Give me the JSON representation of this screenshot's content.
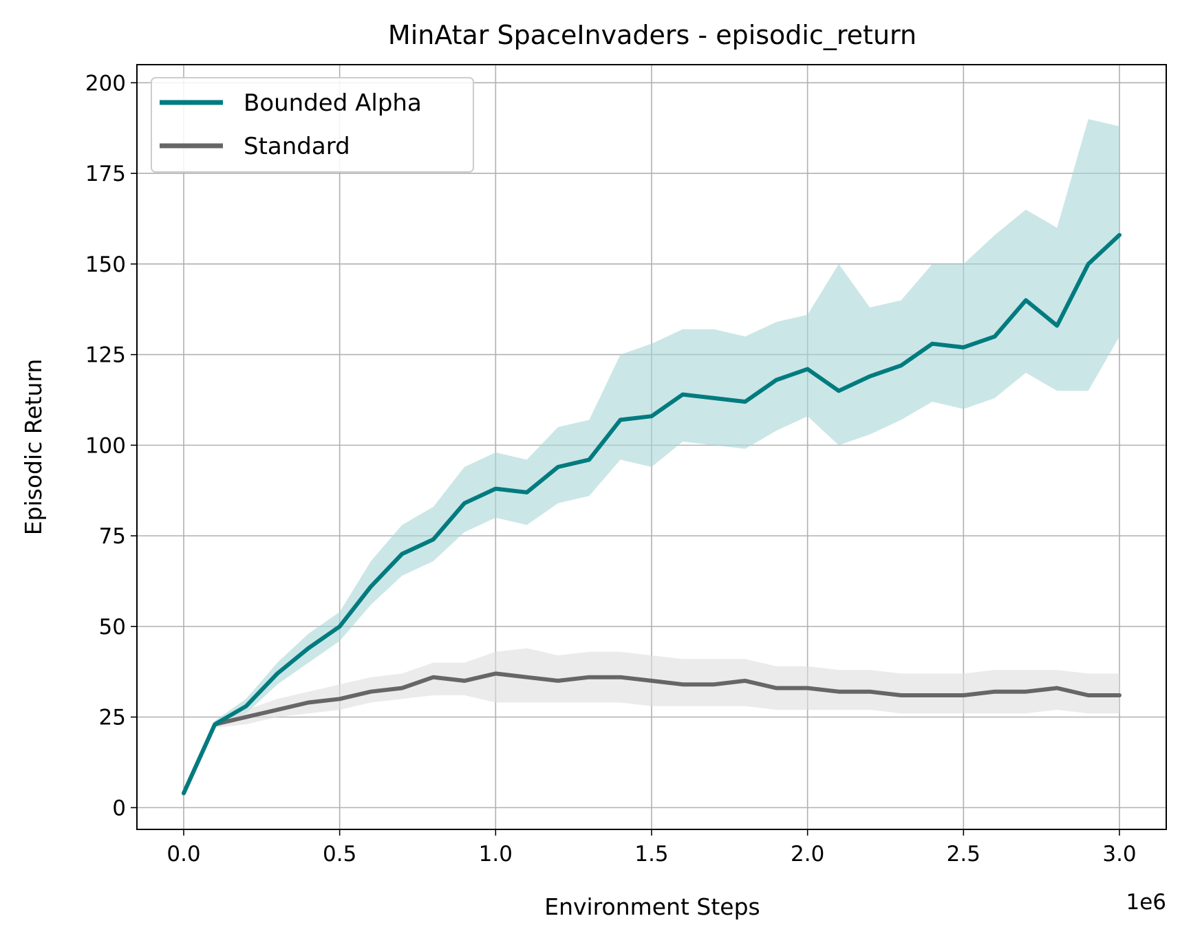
{
  "chart_data": {
    "type": "line",
    "title": "MinAtar SpaceInvaders - episodic_return",
    "xlabel": "Environment Steps",
    "ylabel": "Episodic Return",
    "x_offset_text": "1e6",
    "xlim": [
      -0.15,
      3.15
    ],
    "ylim": [
      -6,
      205
    ],
    "xticks": [
      0.0,
      0.5,
      1.0,
      1.5,
      2.0,
      2.5,
      3.0
    ],
    "xtick_labels": [
      "0.0",
      "0.5",
      "1.0",
      "1.5",
      "2.0",
      "2.5",
      "3.0"
    ],
    "yticks": [
      0,
      25,
      50,
      75,
      100,
      125,
      150,
      175,
      200
    ],
    "ytick_labels": [
      "0",
      "25",
      "50",
      "75",
      "100",
      "125",
      "150",
      "175",
      "200"
    ],
    "grid": true,
    "legend_position": "top-left",
    "x": [
      0.0,
      0.1,
      0.2,
      0.3,
      0.4,
      0.5,
      0.6,
      0.7,
      0.8,
      0.9,
      1.0,
      1.1,
      1.2,
      1.3,
      1.4,
      1.5,
      1.6,
      1.7,
      1.8,
      1.9,
      2.0,
      2.1,
      2.2,
      2.3,
      2.4,
      2.5,
      2.6,
      2.7,
      2.8,
      2.9,
      3.0
    ],
    "series": [
      {
        "name": "Bounded Alpha",
        "color": "#007b7f",
        "band_color": "#a9d6d6",
        "values": [
          4,
          23,
          28,
          37,
          44,
          50,
          61,
          70,
          74,
          84,
          88,
          87,
          94,
          96,
          107,
          108,
          114,
          113,
          112,
          118,
          121,
          115,
          119,
          122,
          128,
          127,
          130,
          140,
          133,
          150,
          158
        ],
        "lower": [
          4,
          22,
          26,
          34,
          40,
          46,
          56,
          64,
          68,
          76,
          80,
          78,
          84,
          86,
          96,
          94,
          101,
          100,
          99,
          104,
          108,
          100,
          103,
          107,
          112,
          110,
          113,
          120,
          115,
          115,
          130
        ],
        "upper": [
          5,
          24,
          30,
          40,
          48,
          54,
          68,
          78,
          83,
          94,
          98,
          96,
          105,
          107,
          125,
          128,
          132,
          132,
          130,
          134,
          136,
          150,
          138,
          140,
          150,
          150,
          158,
          165,
          160,
          190,
          188
        ]
      },
      {
        "name": "Standard",
        "color": "#666666",
        "band_color": "#dddddd",
        "values": [
          4,
          23,
          25,
          27,
          29,
          30,
          32,
          33,
          36,
          35,
          37,
          36,
          35,
          36,
          36,
          35,
          34,
          34,
          35,
          33,
          33,
          32,
          32,
          31,
          31,
          31,
          32,
          32,
          33,
          31,
          31
        ],
        "lower": [
          4,
          22,
          23,
          25,
          26,
          27,
          29,
          30,
          31,
          31,
          29,
          29,
          29,
          29,
          29,
          28,
          28,
          28,
          28,
          27,
          27,
          27,
          27,
          26,
          26,
          26,
          26,
          26,
          27,
          26,
          26
        ],
        "upper": [
          5,
          24,
          27,
          30,
          32,
          34,
          36,
          37,
          40,
          40,
          43,
          44,
          42,
          43,
          43,
          42,
          41,
          41,
          41,
          39,
          39,
          38,
          38,
          37,
          37,
          37,
          38,
          38,
          38,
          37,
          37
        ]
      }
    ]
  }
}
